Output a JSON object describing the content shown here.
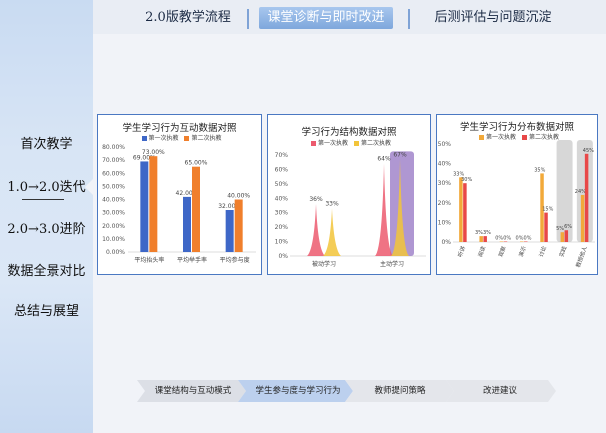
{
  "sidebar": {
    "items": [
      {
        "label": "首次教学"
      },
      {
        "label": "1.0→2.0迭代"
      },
      {
        "label": "2.0→3.0进阶"
      },
      {
        "label": "数据全景对比"
      },
      {
        "label": "总结与展望"
      }
    ]
  },
  "tabs": [
    {
      "label": "2.0版教学流程"
    },
    {
      "label": "课堂诊断与即时改进"
    },
    {
      "label": "后测评估与问题沉淀"
    }
  ],
  "charts": [
    {
      "title": "学生学习行为互动数据对照",
      "legend": [
        "第一次执教",
        "第二次执教"
      ],
      "colors": [
        "#3e67c7",
        "#f07f2c"
      ],
      "chart_data": {
        "type": "bar",
        "categories": [
          "平均抬头率",
          "平均举手率",
          "平均参与度"
        ],
        "series": [
          {
            "name": "第一次执教",
            "values": [
              69.0,
              42.0,
              32.0
            ],
            "labels": [
              "69.00%",
              "42.00%",
              "32.00%"
            ]
          },
          {
            "name": "第二次执教",
            "values": [
              73.0,
              65.0,
              40.0
            ],
            "labels": [
              "73.00%",
              "65.00%",
              "40.00%"
            ]
          }
        ],
        "ylim": [
          0,
          80
        ],
        "yticks": [
          "0.00%",
          "10.00%",
          "20.00%",
          "30.00%",
          "40.00%",
          "50.00%",
          "60.00%",
          "70.00%",
          "80.00%"
        ]
      }
    },
    {
      "title": "学习行为结构数据对照",
      "legend": [
        "第一次执教",
        "第二次执教"
      ],
      "colors": [
        "#ec5a6e",
        "#f2c43a"
      ],
      "chart_data": {
        "type": "area",
        "categories": [
          "被动学习",
          "主动学习"
        ],
        "series": [
          {
            "name": "第一次执教",
            "values": [
              36,
              64
            ],
            "labels": [
              "36%",
              "64%"
            ]
          },
          {
            "name": "第二次执教",
            "values": [
              33,
              67
            ],
            "labels": [
              "33%",
              "67%"
            ]
          }
        ],
        "ylim": [
          0,
          70
        ],
        "yticks": [
          "0%",
          "10%",
          "20%",
          "30%",
          "40%",
          "50%",
          "60%",
          "70%"
        ]
      }
    },
    {
      "title": "学生学习行为分布数据对照",
      "legend": [
        "第一次执教",
        "第二次执教"
      ],
      "colors": [
        "#f2a93a",
        "#e84848"
      ],
      "chart_data": {
        "type": "bar",
        "categories": [
          "听讲",
          "阅读",
          "观察",
          "演示",
          "讨论",
          "实践",
          "教授他人"
        ],
        "series": [
          {
            "name": "第一次执教",
            "values": [
              33,
              3,
              0,
              0,
              35,
              5,
              24
            ],
            "labels": [
              "33%",
              "3%",
              "0%",
              "0%",
              "35%",
              "5%",
              "24%"
            ]
          },
          {
            "name": "第二次执教",
            "values": [
              30,
              3,
              0,
              0,
              15,
              6,
              45
            ],
            "labels": [
              "30%",
              "3%",
              "0%",
              "0%",
              "15%",
              "6%",
              "45%"
            ]
          }
        ],
        "ylim": [
          0,
          50
        ],
        "yticks": [
          "0%",
          "10%",
          "20%",
          "30%",
          "40%",
          "50%"
        ]
      }
    }
  ],
  "flow": [
    {
      "label": "课堂结构与互动模式"
    },
    {
      "label": "学生参与度与学习行为"
    },
    {
      "label": "教师提问策略"
    },
    {
      "label": "改进建议"
    }
  ]
}
